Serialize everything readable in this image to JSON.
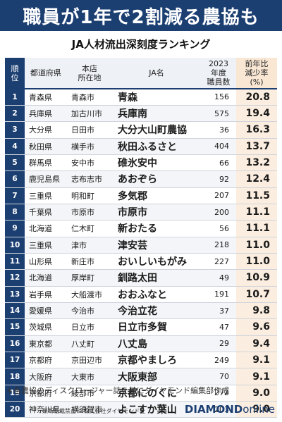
{
  "title": "職員が1年で2割減る農協も",
  "subtitle": "JA人材流出深刻度ランキング",
  "table": {
    "headers": {
      "rank": [
        "順",
        "位"
      ],
      "pref": "都道府県",
      "city": [
        "本店",
        "所在地"
      ],
      "ja": "JA名",
      "staff": [
        "2023",
        "年度",
        "職員数"
      ],
      "rate": [
        "前年比",
        "減少率",
        "(%)"
      ]
    },
    "rows": [
      {
        "rank": "1",
        "pref": "青森県",
        "city": "青森市",
        "ja": "青森",
        "staff": "156",
        "rate": "20.8"
      },
      {
        "rank": "2",
        "pref": "兵庫県",
        "city": "加古川市",
        "ja": "兵庫南",
        "staff": "575",
        "rate": "19.4"
      },
      {
        "rank": "3",
        "pref": "大分県",
        "city": "日田市",
        "ja": "大分大山町農協",
        "staff": "36",
        "rate": "16.3"
      },
      {
        "rank": "4",
        "pref": "秋田県",
        "city": "横手市",
        "ja": "秋田ふるさと",
        "staff": "404",
        "rate": "13.7"
      },
      {
        "rank": "5",
        "pref": "群馬県",
        "city": "安中市",
        "ja": "碓氷安中",
        "staff": "66",
        "rate": "13.2"
      },
      {
        "rank": "6",
        "pref": "鹿児島県",
        "city": "志布志市",
        "ja": "あおぞら",
        "staff": "92",
        "rate": "12.4"
      },
      {
        "rank": "7",
        "pref": "三重県",
        "city": "明和町",
        "ja": "多気郡",
        "staff": "207",
        "rate": "11.5"
      },
      {
        "rank": "8",
        "pref": "千葉県",
        "city": "市原市",
        "ja": "市原市",
        "staff": "200",
        "rate": "11.1"
      },
      {
        "rank": "9",
        "pref": "北海道",
        "city": "仁木町",
        "ja": "新おたる",
        "staff": "56",
        "rate": "11.1"
      },
      {
        "rank": "10",
        "pref": "三重県",
        "city": "津市",
        "ja": "津安芸",
        "staff": "218",
        "rate": "11.0"
      },
      {
        "rank": "11",
        "pref": "山形県",
        "city": "新庄市",
        "ja": "おいしいもがみ",
        "staff": "227",
        "rate": "11.0"
      },
      {
        "rank": "12",
        "pref": "北海道",
        "city": "厚岸町",
        "ja": "釧路太田",
        "staff": "49",
        "rate": "10.9"
      },
      {
        "rank": "13",
        "pref": "岩手県",
        "city": "大船渡市",
        "ja": "おおふなと",
        "staff": "191",
        "rate": "10.7"
      },
      {
        "rank": "14",
        "pref": "愛媛県",
        "city": "今治市",
        "ja": "今治立花",
        "staff": "37",
        "rate": "9.8"
      },
      {
        "rank": "15",
        "pref": "茨城県",
        "city": "日立市",
        "ja": "日立市多賀",
        "staff": "47",
        "rate": "9.6"
      },
      {
        "rank": "16",
        "pref": "東京都",
        "city": "八丈町",
        "ja": "八丈島",
        "staff": "29",
        "rate": "9.4"
      },
      {
        "rank": "17",
        "pref": "京都府",
        "city": "京田辺市",
        "ja": "京都やましろ",
        "staff": "249",
        "rate": "9.1"
      },
      {
        "rank": "18",
        "pref": "大阪府",
        "city": "大東市",
        "ja": "大阪東部",
        "staff": "70",
        "rate": "9.1"
      },
      {
        "rank": "19",
        "pref": "京都府",
        "city": "綾部市",
        "ja": "京都にのくに",
        "staff": "272",
        "rate": "9.0"
      },
      {
        "rank": "20",
        "pref": "神奈川県",
        "city": "横須賀市",
        "ja": "よこすか葉山",
        "staff": "203",
        "rate": "9.0"
      }
    ]
  },
  "note": "＊各農協のディスクロージャー誌を基にダイヤモンド編集部作成",
  "credit": "無断転載禁止 ©株式会社ダイヤモンド社",
  "logo": {
    "main": "DIAMOND",
    "suffix": "online"
  },
  "colors": {
    "navy": "#1c3f72",
    "rate_bg": "#fbeee0",
    "header_bg": "#eef1f6"
  }
}
